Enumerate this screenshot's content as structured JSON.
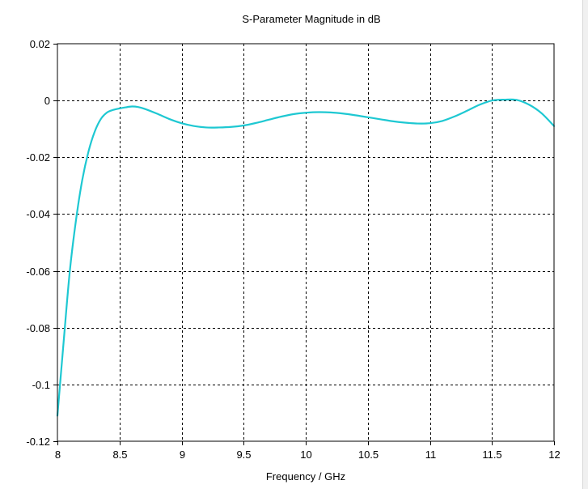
{
  "colors": {
    "series": "#1ec8d2",
    "background": "#ffffff",
    "grid": "#000000"
  },
  "chart_data": {
    "type": "line",
    "title": "S-Parameter Magnitude in dB",
    "xlabel": "Frequency / GHz",
    "ylabel": "",
    "xlim": [
      8,
      12
    ],
    "ylim": [
      -0.12,
      0.02
    ],
    "grid": true,
    "x_ticks": [
      8,
      8.5,
      9,
      9.5,
      10,
      10.5,
      11,
      11.5,
      12
    ],
    "x_tick_labels": [
      "8",
      "8.5",
      "9",
      "9.5",
      "10",
      "10.5",
      "11",
      "11.5",
      "12"
    ],
    "y_ticks": [
      0.02,
      0,
      -0.02,
      -0.04,
      -0.06,
      -0.08,
      -0.1,
      -0.12
    ],
    "y_tick_labels": [
      "0.02",
      "0",
      "-0.02",
      "-0.04",
      "-0.06",
      "-0.08",
      "-0.1",
      "-0.12"
    ],
    "series": [
      {
        "name": "",
        "x": [
          8.0,
          8.05,
          8.1,
          8.15,
          8.2,
          8.25,
          8.3,
          8.35,
          8.4,
          8.45,
          8.5,
          8.55,
          8.6,
          8.65,
          8.7,
          8.8,
          8.9,
          9.0,
          9.1,
          9.2,
          9.3,
          9.4,
          9.5,
          9.6,
          9.7,
          9.8,
          9.9,
          10.0,
          10.1,
          10.2,
          10.3,
          10.4,
          10.5,
          10.6,
          10.7,
          10.8,
          10.9,
          11.0,
          11.1,
          11.2,
          11.3,
          11.4,
          11.5,
          11.6,
          11.7,
          11.8,
          11.9,
          12.0
        ],
        "y": [
          -0.111,
          -0.085,
          -0.06,
          -0.042,
          -0.028,
          -0.018,
          -0.011,
          -0.0065,
          -0.0042,
          -0.0033,
          -0.0028,
          -0.0024,
          -0.0021,
          -0.0023,
          -0.0029,
          -0.0046,
          -0.0065,
          -0.008,
          -0.009,
          -0.0095,
          -0.0095,
          -0.0093,
          -0.0088,
          -0.0079,
          -0.0068,
          -0.0057,
          -0.0048,
          -0.0043,
          -0.0041,
          -0.0042,
          -0.0046,
          -0.0052,
          -0.0059,
          -0.0066,
          -0.0073,
          -0.0078,
          -0.0081,
          -0.008,
          -0.0072,
          -0.0056,
          -0.0036,
          -0.0015,
          0.0,
          0.0003,
          0.0002,
          -0.0015,
          -0.0045,
          -0.009
        ]
      }
    ]
  }
}
